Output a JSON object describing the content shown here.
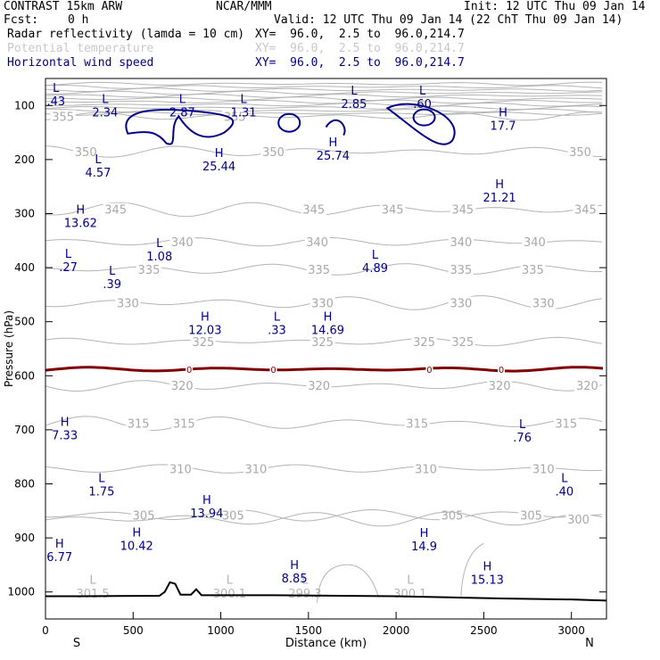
{
  "header": {
    "model": "CONTRAST 15km ARW",
    "org": "NCAR/MMM",
    "init": "Init: 12 UTC Thu 09 Jan 14",
    "fcst_label": "Fcst:",
    "fcst_value": "0 h",
    "valid": "Valid: 12 UTC Thu 09 Jan 14 (22 ChT Thu 09 Jan 14)",
    "fields": [
      {
        "name": "Radar reflectivity (lamda = 10 cm)",
        "xy": "XY=  96.0,  2.5 to  96.0,214.7",
        "color": "#000000"
      },
      {
        "name": "Potential temperature",
        "xy": "XY=  96.0,  2.5 to  96.0,214.7",
        "color": "#c8c8c8"
      },
      {
        "name": "Horizontal wind speed",
        "xy": "XY=  96.0,  2.5 to  96.0,214.7",
        "color": "#00007f"
      }
    ]
  },
  "chart_data": {
    "type": "cross-section contour",
    "xlabel": "Distance (km)",
    "ylabel": "Pressure (hPa)",
    "xlim": [
      0,
      3200
    ],
    "ylim": [
      1050,
      50
    ],
    "x_ticks": [
      "0",
      "500",
      "1000",
      "1500",
      "2000",
      "2500",
      "3000"
    ],
    "y_ticks": [
      "100",
      "200",
      "300",
      "400",
      "500",
      "600",
      "700",
      "800",
      "900",
      "1000"
    ],
    "x_ends": {
      "left": "S",
      "right": "N"
    },
    "theta_contours": [
      {
        "level": 355,
        "p": 120,
        "labels": [
          {
            "x": 100,
            "text": "355"
          },
          {
            "x": 1080,
            "text": "355"
          }
        ]
      },
      {
        "level": 350,
        "p": 185,
        "labels": [
          {
            "x": 230,
            "text": "350"
          },
          {
            "x": 1300,
            "text": "350"
          },
          {
            "x": 3050,
            "text": "350"
          }
        ]
      },
      {
        "level": 345,
        "p": 292,
        "labels": [
          {
            "x": 400,
            "text": "345"
          },
          {
            "x": 1530,
            "text": "345"
          },
          {
            "x": 1980,
            "text": "345"
          },
          {
            "x": 2380,
            "text": "345"
          },
          {
            "x": 3080,
            "text": "345"
          }
        ]
      },
      {
        "level": 340,
        "p": 352,
        "labels": [
          {
            "x": 780,
            "text": "340"
          },
          {
            "x": 1550,
            "text": "340"
          },
          {
            "x": 2370,
            "text": "340"
          },
          {
            "x": 2790,
            "text": "340"
          }
        ]
      },
      {
        "level": 335,
        "p": 403,
        "labels": [
          {
            "x": 590,
            "text": "335"
          },
          {
            "x": 1560,
            "text": "335"
          },
          {
            "x": 2370,
            "text": "335"
          },
          {
            "x": 2780,
            "text": "335"
          }
        ]
      },
      {
        "level": 330,
        "p": 465,
        "labels": [
          {
            "x": 470,
            "text": "330"
          },
          {
            "x": 1580,
            "text": "330"
          },
          {
            "x": 2370,
            "text": "330"
          },
          {
            "x": 2840,
            "text": "330"
          }
        ]
      },
      {
        "level": 325,
        "p": 537,
        "labels": [
          {
            "x": 900,
            "text": "325"
          },
          {
            "x": 1580,
            "text": "325"
          },
          {
            "x": 2160,
            "text": "325"
          },
          {
            "x": 2380,
            "text": "325"
          }
        ]
      },
      {
        "level": 320,
        "p": 618,
        "labels": [
          {
            "x": 780,
            "text": "320"
          },
          {
            "x": 1560,
            "text": "320"
          },
          {
            "x": 2590,
            "text": "320"
          },
          {
            "x": 3090,
            "text": "320"
          }
        ]
      },
      {
        "level": 315,
        "p": 688,
        "labels": [
          {
            "x": 530,
            "text": "315"
          },
          {
            "x": 790,
            "text": "315"
          },
          {
            "x": 2120,
            "text": "315"
          },
          {
            "x": 2970,
            "text": "315"
          }
        ]
      },
      {
        "level": 310,
        "p": 772,
        "labels": [
          {
            "x": 770,
            "text": "310"
          },
          {
            "x": 1200,
            "text": "310"
          },
          {
            "x": 2170,
            "text": "310"
          },
          {
            "x": 2840,
            "text": "310"
          }
        ]
      },
      {
        "level": 305,
        "p": 858,
        "labels": [
          {
            "x": 560,
            "text": "305"
          },
          {
            "x": 1070,
            "text": "305"
          },
          {
            "x": 2320,
            "text": "305"
          },
          {
            "x": 2770,
            "text": "305"
          }
        ]
      },
      {
        "level": 300,
        "p": 865,
        "labels": [
          {
            "x": 3040,
            "text": "300"
          }
        ]
      }
    ],
    "surface_theta_labels": [
      {
        "x": 270,
        "text": "L"
      },
      {
        "x": 270,
        "text": "301.5"
      },
      {
        "x": 1050,
        "text": "L"
      },
      {
        "x": 1050,
        "text": "300.1"
      },
      {
        "x": 1480,
        "text": "L"
      },
      {
        "x": 1480,
        "text": "299.3"
      },
      {
        "x": 2080,
        "text": "L"
      },
      {
        "x": 2080,
        "text": "300.1"
      }
    ],
    "zero_contour": {
      "p": 588,
      "label": "0",
      "label_x": [
        820,
        1300,
        2190,
        2600
      ]
    },
    "wind_speed_extrema": [
      {
        "type": "L",
        "value": ".43",
        "x": 60,
        "p": 75
      },
      {
        "type": "L",
        "value": "2.34",
        "x": 340,
        "p": 95
      },
      {
        "type": "L",
        "value": "2.87",
        "x": 780,
        "p": 95
      },
      {
        "type": "L",
        "value": "1.31",
        "x": 1130,
        "p": 95
      },
      {
        "type": "L",
        "value": "2.85",
        "x": 1760,
        "p": 80
      },
      {
        "type": "L",
        "value": ".60",
        "x": 2150,
        "p": 80
      },
      {
        "type": "H",
        "value": "17.7",
        "x": 2610,
        "p": 120
      },
      {
        "type": "H",
        "value": "25.74",
        "x": 1640,
        "p": 175
      },
      {
        "type": "H",
        "value": "25.44",
        "x": 990,
        "p": 195
      },
      {
        "type": "L",
        "value": "4.57",
        "x": 300,
        "p": 207
      },
      {
        "type": "H",
        "value": "21.21",
        "x": 2590,
        "p": 253
      },
      {
        "type": "H",
        "value": "13.62",
        "x": 200,
        "p": 300
      },
      {
        "type": "L",
        "value": "1.08",
        "x": 650,
        "p": 362
      },
      {
        "type": "L",
        "value": ".27",
        "x": 130,
        "p": 382
      },
      {
        "type": "L",
        "value": "4.89",
        "x": 1880,
        "p": 383
      },
      {
        "type": "L",
        "value": ".39",
        "x": 380,
        "p": 413
      },
      {
        "type": "H",
        "value": "12.03",
        "x": 910,
        "p": 498
      },
      {
        "type": "L",
        "value": ".33",
        "x": 1320,
        "p": 498
      },
      {
        "type": "H",
        "value": "14.69",
        "x": 1610,
        "p": 498
      },
      {
        "type": "H",
        "value": "7.33",
        "x": 110,
        "p": 693
      },
      {
        "type": "L",
        "value": ".76",
        "x": 2720,
        "p": 697
      },
      {
        "type": "L",
        "value": "1.75",
        "x": 320,
        "p": 797
      },
      {
        "type": "L",
        "value": ".40",
        "x": 2960,
        "p": 797
      },
      {
        "type": "H",
        "value": "13.94",
        "x": 920,
        "p": 837
      },
      {
        "type": "H",
        "value": "10.42",
        "x": 520,
        "p": 897
      },
      {
        "type": "H",
        "value": "14.9",
        "x": 2160,
        "p": 898
      },
      {
        "type": "H",
        "value": "6.77",
        "x": 80,
        "p": 918
      },
      {
        "type": "H",
        "value": "8.85",
        "x": 1420,
        "p": 958
      },
      {
        "type": "H",
        "value": "15.13",
        "x": 2520,
        "p": 960
      }
    ],
    "reflectivity_surface": "terrain outline along ~1005 hPa with peaks near 720 km and 860 km"
  }
}
